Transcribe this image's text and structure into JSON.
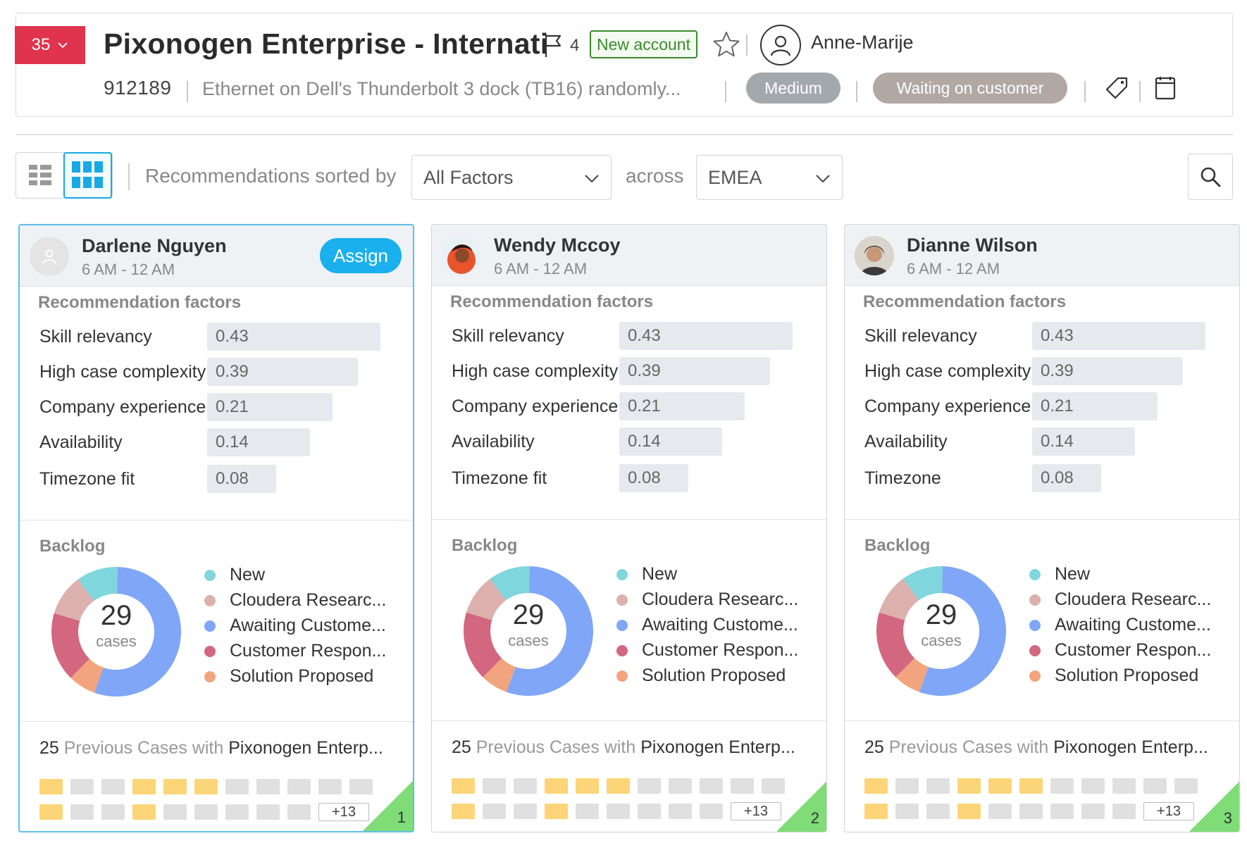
{
  "header": {
    "count_badge": "35",
    "title": "Pixonogen Enterprise - Internati",
    "flag_count": "4",
    "new_account": "New account",
    "owner": "Anne-Marije",
    "case_number": "912189",
    "description": "Ethernet on Dell's Thunderbolt 3 dock (TB16) randomly...",
    "priority": "Medium",
    "status": "Waiting on customer"
  },
  "toolbar": {
    "sorted_label": "Recommendations sorted by",
    "factor_select": "All Factors",
    "across_label": "across",
    "region_select": "EMEA"
  },
  "labels": {
    "rec_factors": "Recommendation factors",
    "backlog": "Backlog",
    "cases": "cases",
    "assign": "Assign",
    "previous_prefix": "25",
    "previous_middle": " Previous Cases with ",
    "previous_company": "Pixonogen Enterp...",
    "more": "+13"
  },
  "colors": {
    "new": "#7fd6dc",
    "cloudera": "#dcb1ad",
    "awaiting": "#7fa6f7",
    "customer_resp": "#d2677f",
    "solution": "#f2a47e",
    "accent": "#1ab0ee",
    "count_badge": "#e0344e"
  },
  "backlog_legend": [
    {
      "key": "new",
      "label": "New"
    },
    {
      "key": "cloudera",
      "label": "Cloudera Researc..."
    },
    {
      "key": "awaiting",
      "label": "Awaiting Custome..."
    },
    {
      "key": "customer_resp",
      "label": "Customer Respon..."
    },
    {
      "key": "solution",
      "label": "Solution Proposed"
    }
  ],
  "backlog_total": "29",
  "backlog_slices": [
    {
      "key": "awaiting",
      "value": 16
    },
    {
      "key": "solution",
      "value": 2
    },
    {
      "key": "customer_resp",
      "value": 5
    },
    {
      "key": "cloudera",
      "value": 3
    },
    {
      "key": "new",
      "value": 3
    }
  ],
  "previous_cases": {
    "row1": [
      1,
      0,
      0,
      1,
      1,
      1,
      0,
      0,
      0,
      0,
      0
    ],
    "row2": [
      1,
      0,
      0,
      1,
      0,
      0,
      0,
      0,
      0
    ]
  },
  "cards": [
    {
      "name": "Darlene Nguyen",
      "hours": "6 AM - 12 AM",
      "selected": true,
      "rank": "1",
      "factors": [
        {
          "label": "Skill relevancy",
          "value": "0.43"
        },
        {
          "label": "High case complexity",
          "value": "0.39"
        },
        {
          "label": "Company experience",
          "value": "0.21"
        },
        {
          "label": "Availability",
          "value": "0.14"
        },
        {
          "label": "Timezone fit",
          "value": "0.08"
        }
      ]
    },
    {
      "name": "Wendy Mccoy",
      "hours": "6 AM - 12 AM",
      "selected": false,
      "rank": "2",
      "factors": [
        {
          "label": "Skill relevancy",
          "value": "0.43"
        },
        {
          "label": "High case complexity",
          "value": "0.39"
        },
        {
          "label": "Company experience",
          "value": "0.21"
        },
        {
          "label": "Availability",
          "value": "0.14"
        },
        {
          "label": "Timezone fit",
          "value": "0.08"
        }
      ]
    },
    {
      "name": "Dianne Wilson",
      "hours": "6 AM - 12 AM",
      "selected": false,
      "rank": "3",
      "factors": [
        {
          "label": "Skill relevancy",
          "value": "0.43"
        },
        {
          "label": "High case complexity",
          "value": "0.39"
        },
        {
          "label": "Company experience",
          "value": "0.21"
        },
        {
          "label": "Availability",
          "value": "0.14"
        },
        {
          "label": "Timezone",
          "value": "0.08"
        }
      ]
    }
  ]
}
